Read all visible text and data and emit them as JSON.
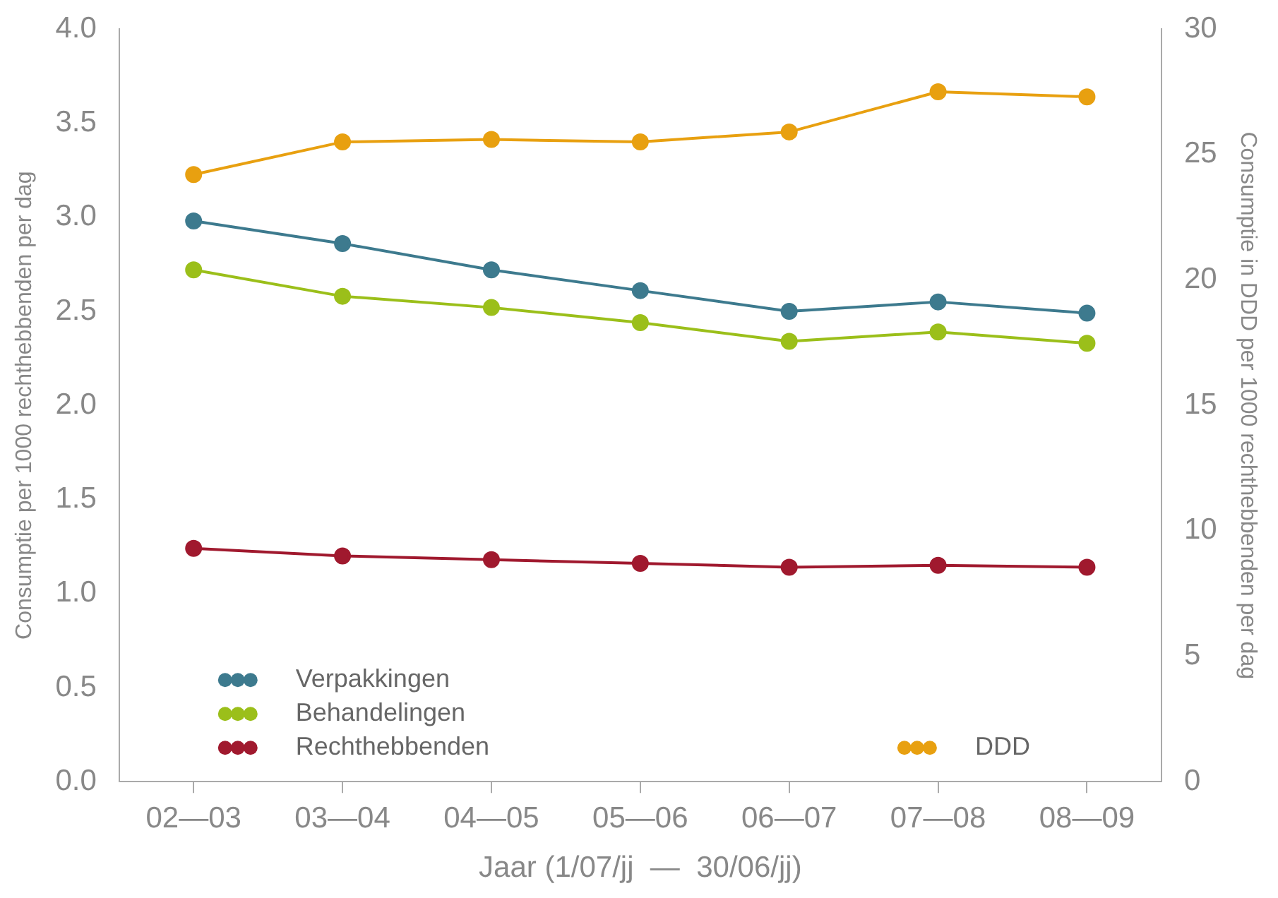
{
  "chart_data": {
    "type": "line",
    "xlabel": "Jaar (1/07/jj  —  30/06/jj)",
    "ylabel": "Consumptie per 1000 rechthebbenden per dag",
    "y2label": "Consumptie in DDD per 1000 rechthebbenden per dag",
    "categories": [
      "02—03",
      "03—04",
      "04—05",
      "05—06",
      "06—07",
      "07—08",
      "08—09"
    ],
    "series": [
      {
        "name": "Verpakkingen",
        "color": "#3d7a8e",
        "values": [
          2.98,
          2.86,
          2.72,
          2.61,
          2.5,
          2.55,
          2.49
        ]
      },
      {
        "name": "Behandelingen",
        "color": "#9bbf1a",
        "values": [
          2.72,
          2.58,
          2.52,
          2.44,
          2.34,
          2.39,
          2.33
        ]
      },
      {
        "name": "Rechthebbenden",
        "color": "#a0192e",
        "values": [
          1.24,
          1.2,
          1.18,
          1.16,
          1.14,
          1.15,
          1.14
        ]
      },
      {
        "name": "DDD",
        "color": "#e8a010",
        "axis": "y2",
        "values": [
          24.2,
          25.5,
          25.6,
          25.5,
          25.9,
          27.5,
          27.3
        ]
      }
    ],
    "ylim": [
      0,
      4
    ],
    "yticks": [
      {
        "value": 0,
        "label": "0.0"
      },
      {
        "value": 0.5,
        "label": "0.5"
      },
      {
        "value": 1,
        "label": "1.0"
      },
      {
        "value": 1.5,
        "label": "1.5"
      },
      {
        "value": 2,
        "label": "2.0"
      },
      {
        "value": 2.5,
        "label": "2.5"
      },
      {
        "value": 3,
        "label": "3.0"
      },
      {
        "value": 3.5,
        "label": "3.5"
      },
      {
        "value": 4,
        "label": "4.0"
      }
    ],
    "y2lim": [
      0,
      30
    ],
    "y2ticks": [
      0,
      5,
      10,
      15,
      20,
      25,
      30
    ],
    "grid": false,
    "legend": "bottom",
    "marker": "circle",
    "line_style": "solid"
  }
}
